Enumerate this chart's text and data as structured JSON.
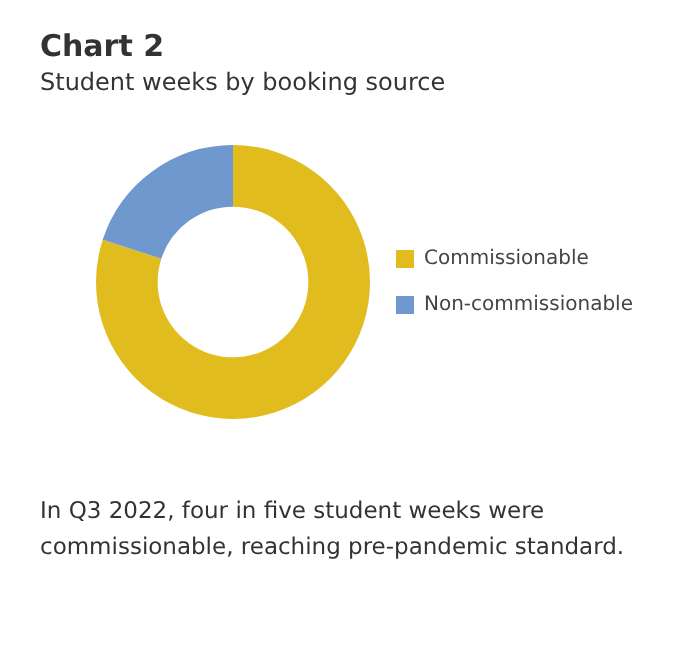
{
  "chart_data": {
    "type": "donut",
    "title": "Chart 2",
    "subtitle": "Student weeks by booking source",
    "categories": [
      "Commissionable",
      "Non-commissionable"
    ],
    "values": [
      80,
      20
    ],
    "colors": [
      "#e1bc1f",
      "#6f98cf"
    ],
    "legend": "right",
    "annotations": [
      "In Q3 2022, four in five student weeks were commissionable, reaching pre-pandemic standard."
    ]
  }
}
